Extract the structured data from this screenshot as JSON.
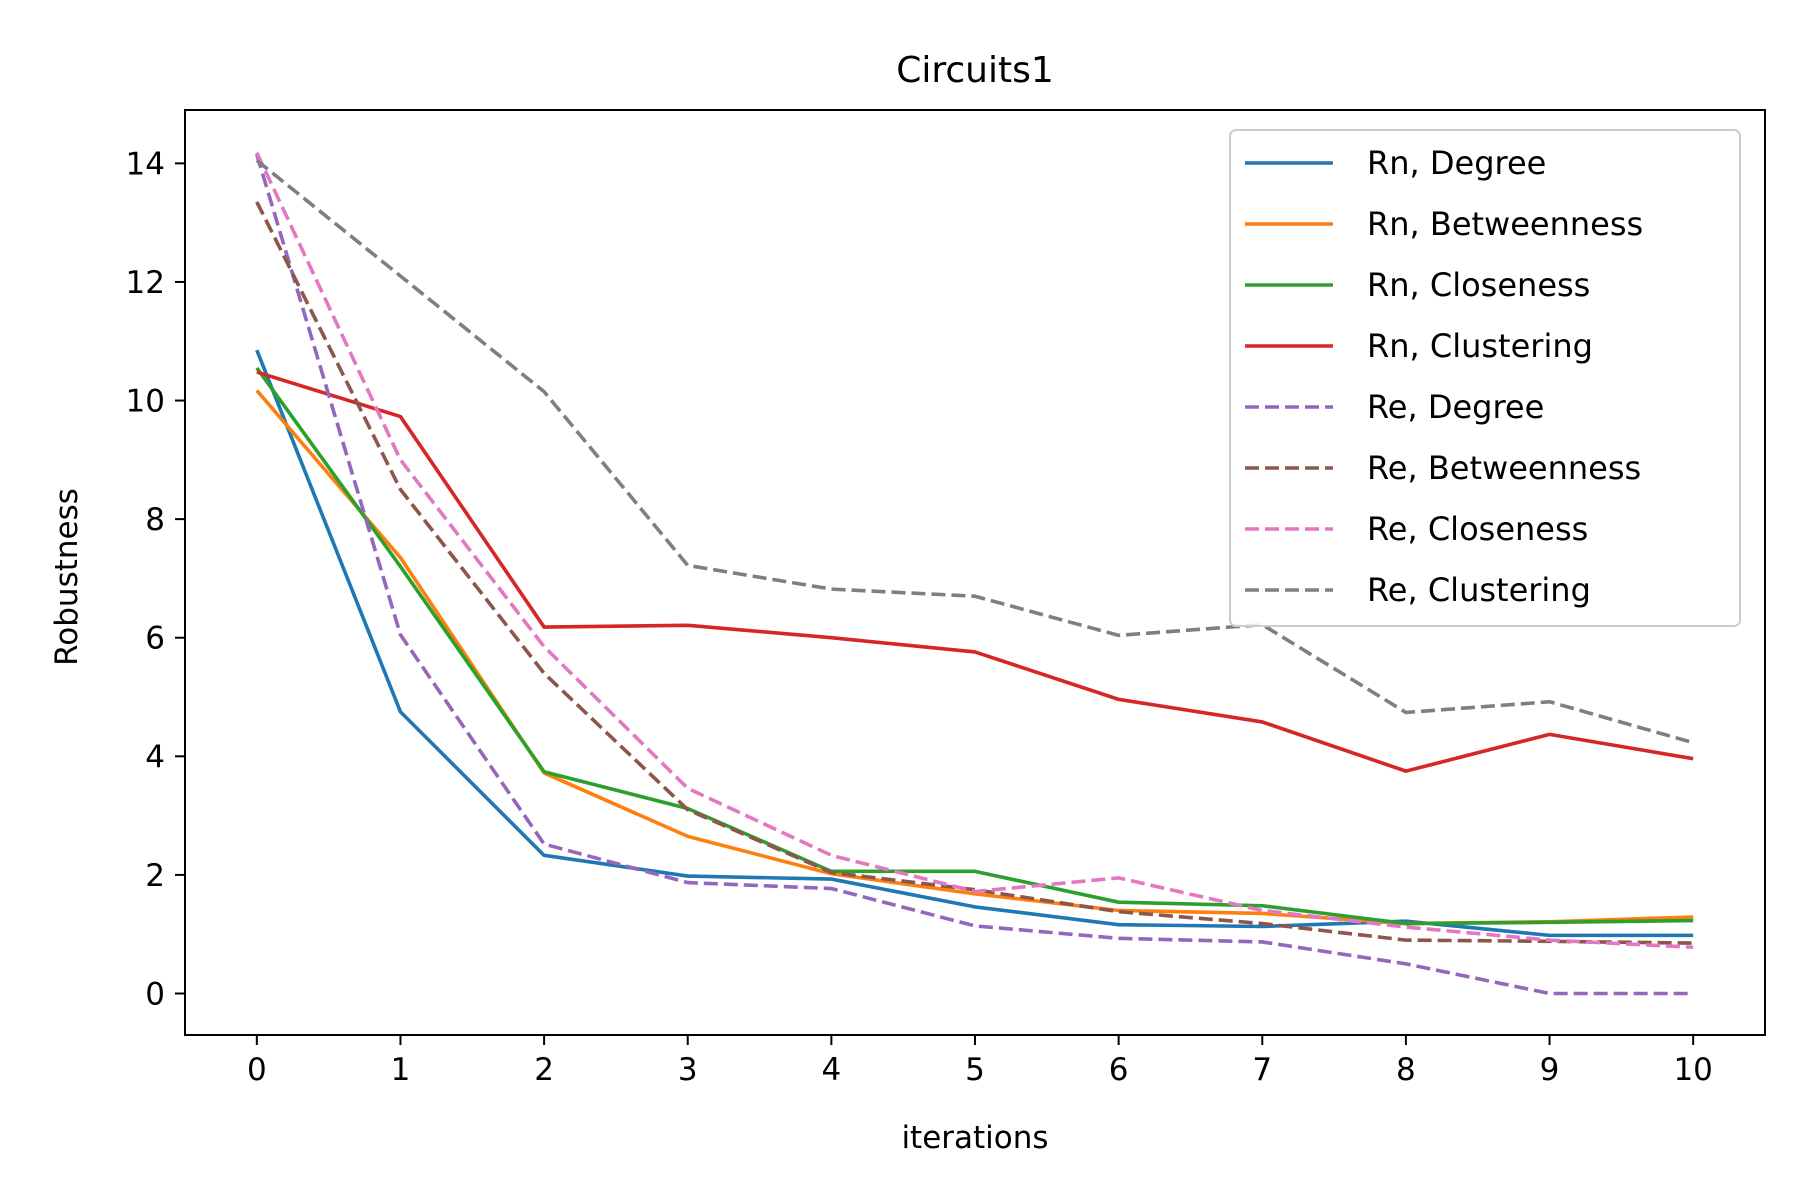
{
  "chart_data": {
    "type": "line",
    "title": "Circuits1",
    "xlabel": "iterations",
    "ylabel": "Robustness",
    "x": [
      0,
      1,
      2,
      3,
      4,
      5,
      6,
      7,
      8,
      9,
      10
    ],
    "xlim": [
      -0.5,
      10.5
    ],
    "ylim": [
      -0.7,
      14.9
    ],
    "xticks": [
      "0",
      "1",
      "2",
      "3",
      "4",
      "5",
      "6",
      "7",
      "8",
      "9",
      "10"
    ],
    "yticks": [
      "0",
      "2",
      "4",
      "6",
      "8",
      "10",
      "12",
      "14"
    ],
    "grid": false,
    "legend_position": "top-right",
    "series": [
      {
        "name": "Rn, Degree",
        "color": "#1f77b4",
        "dash": "solid",
        "values": [
          10.85,
          4.75,
          2.33,
          1.98,
          1.93,
          1.46,
          1.16,
          1.13,
          1.22,
          0.98,
          0.98
        ]
      },
      {
        "name": "Rn, Betweenness",
        "color": "#ff7f0e",
        "dash": "solid",
        "values": [
          10.17,
          7.35,
          3.72,
          2.65,
          2.02,
          1.68,
          1.4,
          1.35,
          1.18,
          1.21,
          1.29
        ]
      },
      {
        "name": "Rn, Closeness",
        "color": "#2ca02c",
        "dash": "solid",
        "values": [
          10.55,
          7.2,
          3.74,
          3.12,
          2.06,
          2.06,
          1.54,
          1.48,
          1.18,
          1.2,
          1.23
        ]
      },
      {
        "name": "Rn, Clustering",
        "color": "#d62728",
        "dash": "solid",
        "values": [
          10.48,
          9.73,
          6.18,
          6.21,
          6.0,
          5.76,
          4.96,
          4.58,
          3.75,
          4.37,
          3.96
        ]
      },
      {
        "name": "Re, Degree",
        "color": "#9467bd",
        "dash": "dashed",
        "values": [
          14.15,
          6.05,
          2.52,
          1.87,
          1.77,
          1.14,
          0.93,
          0.87,
          0.5,
          0.0,
          0.0
        ]
      },
      {
        "name": "Re, Betweenness",
        "color": "#8c564b",
        "dash": "dashed",
        "values": [
          13.35,
          8.5,
          5.4,
          3.1,
          2.04,
          1.75,
          1.38,
          1.18,
          0.9,
          0.88,
          0.85
        ]
      },
      {
        "name": "Re, Closeness",
        "color": "#e377c2",
        "dash": "dashed",
        "values": [
          14.18,
          9.0,
          5.85,
          3.46,
          2.33,
          1.72,
          1.95,
          1.4,
          1.12,
          0.9,
          0.78
        ]
      },
      {
        "name": "Re, Clustering",
        "color": "#7f7f7f",
        "dash": "dashed",
        "values": [
          14.05,
          12.1,
          10.15,
          7.22,
          6.82,
          6.7,
          6.04,
          6.22,
          4.74,
          4.92,
          4.23
        ]
      }
    ]
  }
}
